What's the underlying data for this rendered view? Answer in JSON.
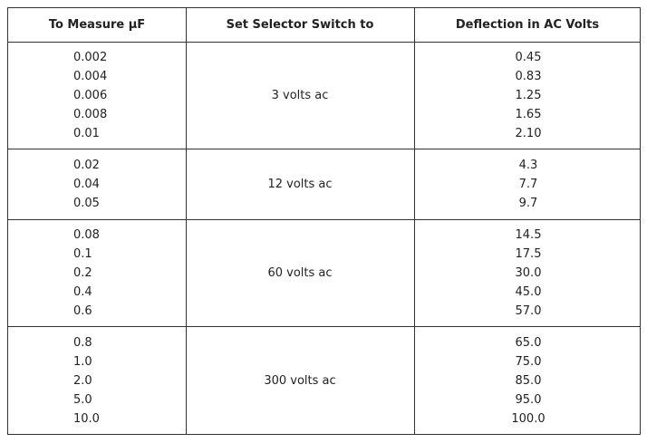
{
  "table": {
    "header": [
      "To Measure μF",
      "Set Selector Switch to",
      "Deflection in AC Volts"
    ],
    "groups": [
      {
        "measure": [
          "0.002",
          "0.004",
          "0.006",
          "0.008",
          "0.01"
        ],
        "switch": "3 volts ac",
        "deflection": [
          "0.45",
          "0.83",
          "1.25",
          "1.65",
          "2.10"
        ]
      },
      {
        "measure": [
          "0.02",
          "0.04",
          "0.05"
        ],
        "switch": "12 volts ac",
        "deflection": [
          "4.3",
          "7.7",
          "9.7"
        ]
      },
      {
        "measure": [
          "0.08",
          "0.1",
          "0.2",
          "0.4",
          "0.6"
        ],
        "switch": "60 volts ac",
        "deflection": [
          "14.5",
          "17.5",
          "30.0",
          "45.0",
          "57.0"
        ]
      },
      {
        "measure": [
          "0.8",
          "1.0",
          "2.0",
          "5.0",
          "10.0"
        ],
        "switch": "300 volts ac",
        "deflection": [
          "65.0",
          "75.0",
          "85.0",
          "95.0",
          "100.0"
        ]
      }
    ]
  }
}
